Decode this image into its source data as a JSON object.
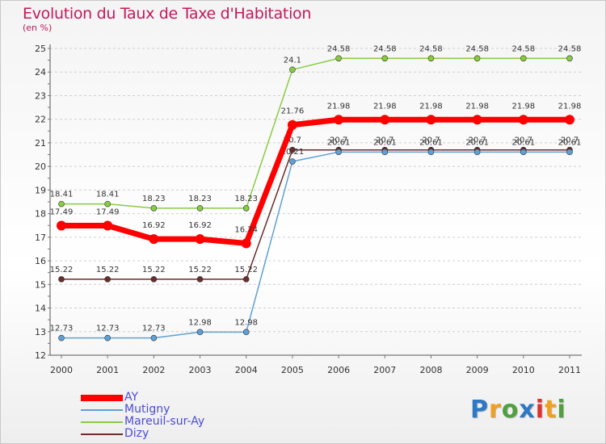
{
  "chart_data": {
    "type": "line",
    "title": "Evolution du Taux de Taxe d'Habitation",
    "ylabel": "(en %)",
    "xlabel": "",
    "x": [
      "2000",
      "2001",
      "2002",
      "2003",
      "2004",
      "2005",
      "2006",
      "2007",
      "2008",
      "2009",
      "2010",
      "2011"
    ],
    "ylim": [
      12,
      25
    ],
    "yticks": [
      12,
      13,
      14,
      15,
      16,
      17,
      18,
      19,
      20,
      21,
      22,
      23,
      24,
      25
    ],
    "grid": "horizontal-dashed",
    "legend_position": "bottom-left",
    "series": [
      {
        "name": "Mareuil-sur-Ay",
        "color": "#88cc44",
        "values": [
          18.41,
          18.41,
          18.23,
          18.23,
          18.23,
          24.1,
          24.58,
          24.58,
          24.58,
          24.58,
          24.58,
          24.58
        ],
        "labels": [
          "18.41",
          "18.41",
          "18.23",
          "18.23",
          "18.23",
          "24.1",
          "24.58",
          "24.58",
          "24.58",
          "24.58",
          "24.58",
          "24.58"
        ]
      },
      {
        "name": "Dizy",
        "color": "#6b2c2c",
        "values": [
          15.22,
          15.22,
          15.22,
          15.22,
          15.22,
          20.7,
          20.7,
          20.7,
          20.7,
          20.7,
          20.7,
          20.7
        ],
        "labels": [
          "15.22",
          "15.22",
          "15.22",
          "15.22",
          "15.22",
          "20.7",
          "20.7",
          "20.7",
          "20.7",
          "20.7",
          "20.7",
          "20.7"
        ]
      },
      {
        "name": "Mutigny",
        "color": "#5fa0d6",
        "values": [
          12.73,
          12.73,
          12.73,
          12.98,
          12.98,
          20.21,
          20.61,
          20.61,
          20.61,
          20.61,
          20.61,
          20.61
        ],
        "labels": [
          "12.73",
          "12.73",
          "12.73",
          "12.98",
          "12.98",
          "20.21",
          "20.61",
          "20.61",
          "20.61",
          "20.61",
          "20.61",
          "20.61"
        ]
      },
      {
        "name": "AY",
        "color": "#ff0000",
        "values": [
          17.49,
          17.49,
          16.92,
          16.92,
          16.74,
          21.76,
          21.98,
          21.98,
          21.98,
          21.98,
          21.98,
          21.98
        ],
        "labels": [
          "17.49",
          "17.49",
          "16.92",
          "16.92",
          "16.74",
          "21.76",
          "21.98",
          "21.98",
          "21.98",
          "21.98",
          "21.98",
          "21.98"
        ]
      }
    ]
  },
  "legend": {
    "items": [
      {
        "name": "AY",
        "color": "#ff0000"
      },
      {
        "name": "Mutigny",
        "color": "#5fa0d6"
      },
      {
        "name": "Mareuil-sur-Ay",
        "color": "#88cc44"
      },
      {
        "name": "Dizy",
        "color": "#6b2c2c"
      }
    ]
  },
  "logo": {
    "letters": [
      "P",
      "r",
      "o",
      "x",
      "i",
      "t",
      "i"
    ],
    "colors": [
      "#2f78c4",
      "#f0a020",
      "#50a040",
      "#2f78c4",
      "#e03030",
      "#f0a020",
      "#50a040"
    ]
  }
}
